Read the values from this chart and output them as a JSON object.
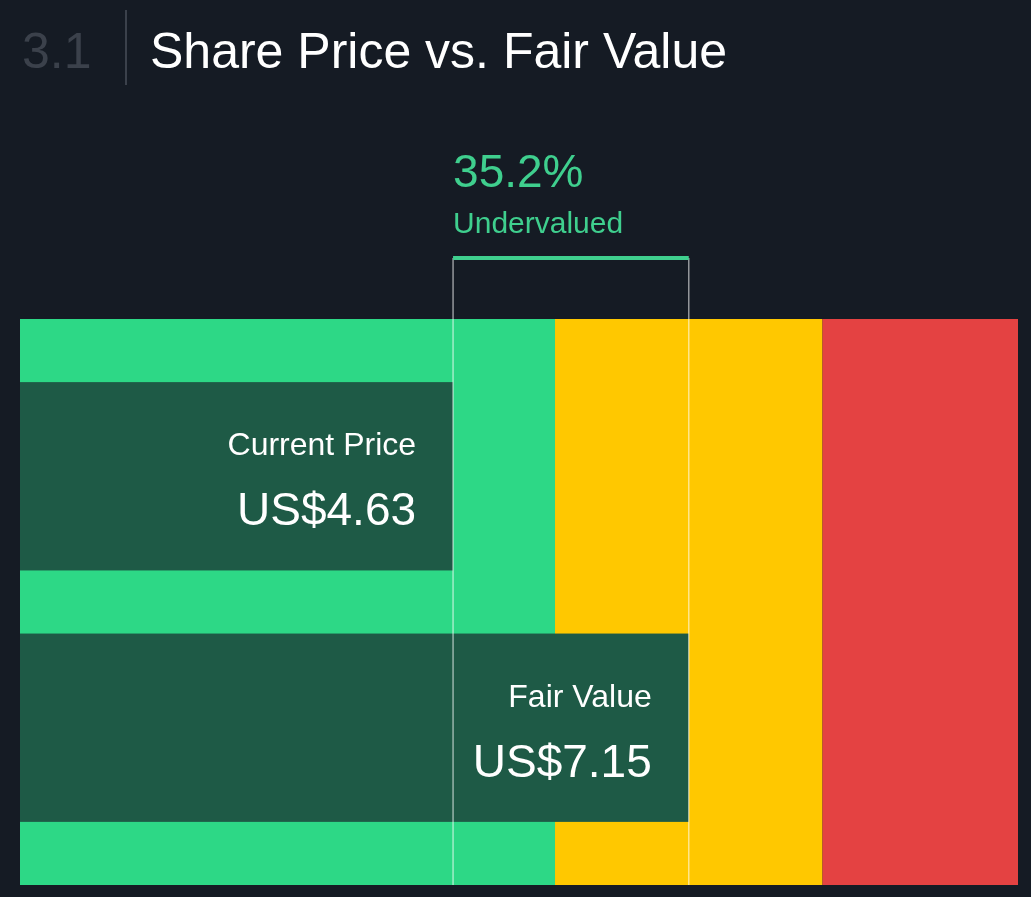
{
  "chart_data": {
    "type": "bar",
    "orientation": "horizontal",
    "title": "Share Price vs. Fair Value",
    "annotations": [
      "3.1",
      "35.2%",
      "Undervalued"
    ],
    "categories": [
      "Current Price",
      "Fair Value"
    ],
    "values": [
      4.63,
      7.15
    ],
    "value_labels": [
      "US$4.63",
      "US$7.15"
    ],
    "color": "#1e5a46",
    "xlim": [
      0,
      10.67
    ],
    "bands": [
      {
        "axis": "x",
        "from": 0,
        "to": 5.72,
        "color": "#2dd886"
      },
      {
        "axis": "x",
        "from": 5.72,
        "to": 8.58,
        "color": "#ffc800"
      },
      {
        "axis": "x",
        "from": 8.58,
        "to": 10.67,
        "color": "#e44242"
      }
    ],
    "ref_lines": [
      {
        "axis": "x",
        "value": 4.63,
        "color": "#ffffff"
      },
      {
        "axis": "x",
        "value": 7.15,
        "color": "#ffffff"
      }
    ]
  }
}
